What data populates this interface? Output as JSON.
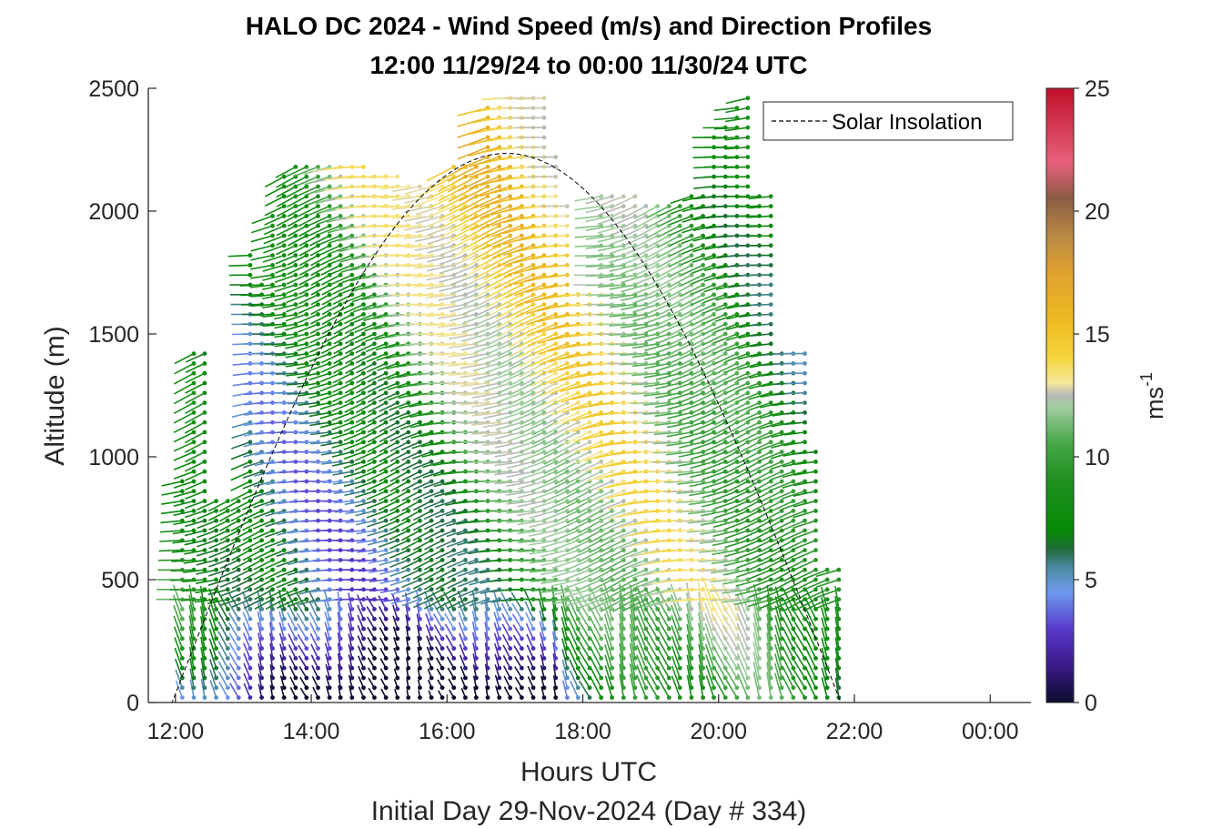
{
  "chart_data": {
    "type": "scatter",
    "title": "HALO DC 2024 - Wind Speed (m/s) and Direction Profiles",
    "subtitle": "12:00 11/29/24 to 00:00 11/30/24  UTC",
    "xlabel": "Hours UTC",
    "xlabel2": "Initial Day 29-Nov-2024 (Day # 334)",
    "ylabel": "Altitude (m)",
    "xlim": [
      11.6,
      24.6
    ],
    "ylim": [
      0,
      2500
    ],
    "xticks": [
      12,
      14,
      16,
      18,
      20,
      22,
      24
    ],
    "xtick_labels": [
      "12:00",
      "14:00",
      "16:00",
      "18:00",
      "20:00",
      "22:00",
      "00:00"
    ],
    "yticks": [
      0,
      500,
      1000,
      1500,
      2000,
      2500
    ],
    "ytick_labels": [
      "0",
      "500",
      "1000",
      "1500",
      "2000",
      "2500"
    ],
    "grid": false,
    "legend": {
      "position": "top-right",
      "entries": [
        {
          "label": "Solar Insolation",
          "style": "dashed",
          "color": "#000000"
        }
      ]
    },
    "colorbar": {
      "label": "ms",
      "label_superscript": "-1",
      "range": [
        0,
        25
      ],
      "ticks": [
        0,
        5,
        10,
        15,
        20,
        25
      ],
      "tick_labels": [
        "0",
        "5",
        "10",
        "15",
        "20",
        "25"
      ]
    },
    "solar_insolation": {
      "rise_hour": 11.95,
      "peak_hour": 16.9,
      "set_hour": 21.8,
      "peak_altitude": 2235
    },
    "profile_start_hour": 12.1,
    "profile_interval_hours": 0.1667,
    "profile_end_hour": 21.8,
    "profiles": [
      {
        "hour": 12.1,
        "top": 900
      },
      {
        "hour": 12.27,
        "top": 1450
      },
      {
        "hour": 12.43,
        "top": 1450
      },
      {
        "hour": 12.6,
        "top": 820
      },
      {
        "hour": 12.77,
        "top": 850
      },
      {
        "hour": 12.93,
        "top": 820
      },
      {
        "hour": 13.1,
        "top": 1850
      },
      {
        "hour": 13.27,
        "top": 1700
      },
      {
        "hour": 13.43,
        "top": 2000
      },
      {
        "hour": 13.6,
        "top": 2150
      },
      {
        "hour": 13.77,
        "top": 2180
      },
      {
        "hour": 13.93,
        "top": 2180
      },
      {
        "hour": 14.1,
        "top": 2180
      },
      {
        "hour": 14.27,
        "top": 2180
      },
      {
        "hour": 14.43,
        "top": 2180
      },
      {
        "hour": 14.6,
        "top": 2180
      },
      {
        "hour": 14.77,
        "top": 2180
      },
      {
        "hour": 14.93,
        "top": 2150
      },
      {
        "hour": 15.1,
        "top": 2150
      },
      {
        "hour": 15.27,
        "top": 2150
      },
      {
        "hour": 15.43,
        "top": 2100
      },
      {
        "hour": 15.6,
        "top": 2100
      },
      {
        "hour": 15.77,
        "top": 2100
      },
      {
        "hour": 15.93,
        "top": 2100
      },
      {
        "hour": 16.1,
        "top": 2200
      },
      {
        "hour": 16.27,
        "top": 2200
      },
      {
        "hour": 16.43,
        "top": 2200
      },
      {
        "hour": 16.6,
        "top": 2440
      },
      {
        "hour": 16.77,
        "top": 2440
      },
      {
        "hour": 16.93,
        "top": 2480
      },
      {
        "hour": 17.1,
        "top": 2480
      },
      {
        "hour": 17.27,
        "top": 2480
      },
      {
        "hour": 17.43,
        "top": 2480
      },
      {
        "hour": 17.6,
        "top": 2230
      },
      {
        "hour": 17.77,
        "top": 2030
      },
      {
        "hour": 17.93,
        "top": 1690
      },
      {
        "hour": 18.1,
        "top": 1690
      },
      {
        "hour": 18.27,
        "top": 2080
      },
      {
        "hour": 18.43,
        "top": 2080
      },
      {
        "hour": 18.6,
        "top": 2080
      },
      {
        "hour": 18.77,
        "top": 2080
      },
      {
        "hour": 18.93,
        "top": 2050
      },
      {
        "hour": 19.1,
        "top": 2050
      },
      {
        "hour": 19.27,
        "top": 2050
      },
      {
        "hour": 19.43,
        "top": 2050
      },
      {
        "hour": 19.6,
        "top": 2080
      },
      {
        "hour": 19.77,
        "top": 2080
      },
      {
        "hour": 19.93,
        "top": 2300
      },
      {
        "hour": 20.1,
        "top": 2370
      },
      {
        "hour": 20.27,
        "top": 2430
      },
      {
        "hour": 20.43,
        "top": 2480
      },
      {
        "hour": 20.6,
        "top": 2080
      },
      {
        "hour": 20.77,
        "top": 2080
      },
      {
        "hour": 20.93,
        "top": 1450
      },
      {
        "hour": 21.1,
        "top": 1450
      },
      {
        "hour": 21.27,
        "top": 1450
      },
      {
        "hour": 21.43,
        "top": 1030
      },
      {
        "hour": 21.6,
        "top": 560
      },
      {
        "hour": 21.77,
        "top": 560
      }
    ],
    "colors": {
      "text": "#262626",
      "title": "#000000",
      "axis": "#262626",
      "insolation": "#000000"
    }
  }
}
